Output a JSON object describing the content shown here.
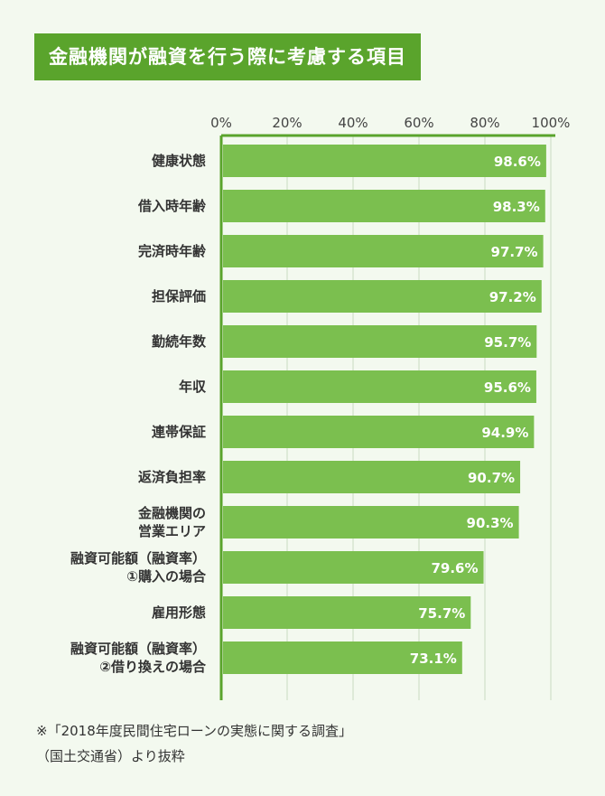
{
  "chart_data": {
    "type": "bar",
    "orientation": "horizontal",
    "title": "金融機関が融資を行う際に考慮する項目",
    "categories": [
      [
        "健康状態"
      ],
      [
        "借入時年齢"
      ],
      [
        "完済時年齢"
      ],
      [
        "担保評価"
      ],
      [
        "勤続年数"
      ],
      [
        "年収"
      ],
      [
        "連帯保証"
      ],
      [
        "返済負担率"
      ],
      [
        "金融機関の",
        "営業エリア"
      ],
      [
        "融資可能額（融資率）",
        "①購入の場合"
      ],
      [
        "雇用形態"
      ],
      [
        "融資可能額（融資率）",
        "②借り換えの場合"
      ]
    ],
    "values": [
      98.6,
      98.3,
      97.7,
      97.2,
      95.7,
      95.6,
      94.9,
      90.7,
      90.3,
      79.6,
      75.7,
      73.1
    ],
    "data_labels": [
      "98.6%",
      "98.3%",
      "97.7%",
      "97.2%",
      "95.7%",
      "95.6%",
      "94.9%",
      "90.7%",
      "90.3%",
      "79.6%",
      "75.7%",
      "73.1%"
    ],
    "xlim": [
      0,
      100
    ],
    "x_ticks": [
      0,
      20,
      40,
      60,
      80,
      100
    ],
    "x_tick_labels": [
      "0%",
      "20%",
      "40%",
      "60%",
      "80%",
      "100%"
    ],
    "axis_position": "top",
    "grid": true,
    "colors": {
      "bar": "#7bbf4f",
      "axis": "#5aa42c",
      "grid": "#c9dcc0",
      "title_bg": "#5aa42c"
    }
  },
  "note": [
    "※「2018年度民間住宅ローンの実態に関する調査」",
    "（国土交通省）より抜粋"
  ]
}
